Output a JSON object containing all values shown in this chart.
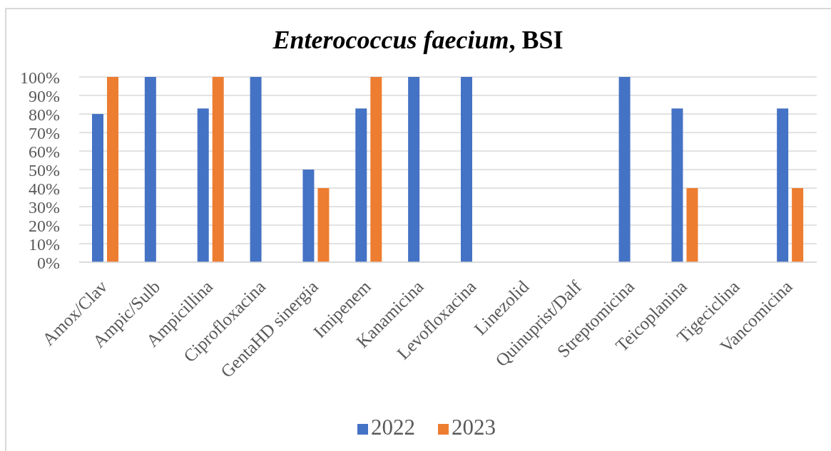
{
  "chart_data": {
    "type": "bar",
    "title": "Enterococcus faecium, BSI",
    "categories": [
      "Amox/Clav",
      "Ampic/Sulb",
      "Ampicillina",
      "Ciprofloxacina",
      "GentaHD sinergia",
      "Imipenem",
      "Kanamicina",
      "Levofloxacina",
      "Linezolid",
      "Quinuprist/Dalf",
      "Streptomicina",
      "Teicoplanina",
      "Tigeciclina",
      "Vancomicina"
    ],
    "series": [
      {
        "name": "2022",
        "color": "#4472c4",
        "values": [
          80,
          100,
          83,
          100,
          50,
          83,
          100,
          100,
          null,
          null,
          100,
          83,
          null,
          83
        ]
      },
      {
        "name": "2023",
        "color": "#ed7d31",
        "values": [
          100,
          null,
          100,
          null,
          40,
          100,
          null,
          null,
          null,
          null,
          null,
          40,
          null,
          40
        ]
      }
    ],
    "ylim": [
      0,
      100
    ],
    "yticks": [
      {
        "value": 0,
        "label": "0%"
      },
      {
        "value": 10,
        "label": "10%"
      },
      {
        "value": 20,
        "label": "20%"
      },
      {
        "value": 30,
        "label": "30%"
      },
      {
        "value": 40,
        "label": "40%"
      },
      {
        "value": 50,
        "label": "50%"
      },
      {
        "value": 60,
        "label": "60%"
      },
      {
        "value": 70,
        "label": "70%"
      },
      {
        "value": 80,
        "label": "80%"
      },
      {
        "value": 90,
        "label": "90%"
      },
      {
        "value": 100,
        "label": "100%"
      }
    ],
    "grid": "y",
    "legend": "bottom"
  }
}
